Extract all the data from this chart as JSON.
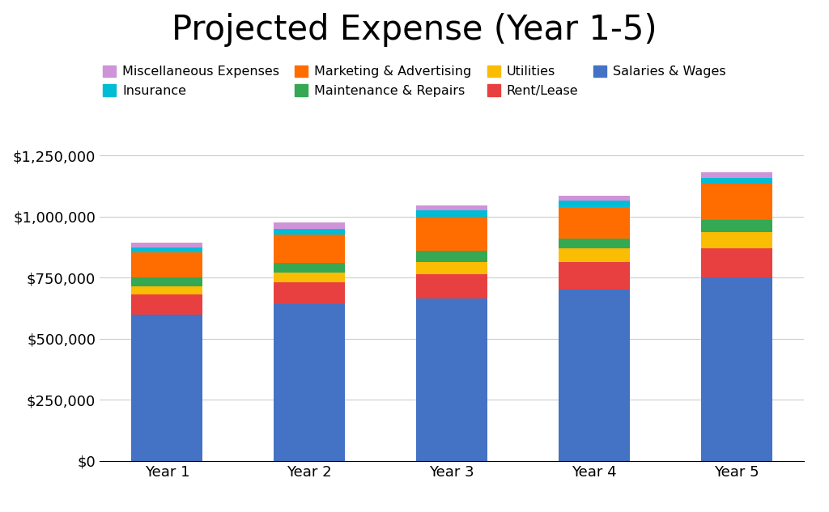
{
  "title": "Projected Expense (Year 1-5)",
  "categories": [
    "Year 1",
    "Year 2",
    "Year 3",
    "Year 4",
    "Year 5"
  ],
  "series": [
    {
      "label": "Salaries & Wages",
      "color": "#4472C4",
      "values": [
        600000,
        640000,
        665000,
        700000,
        750000
      ]
    },
    {
      "label": "Rent/Lease",
      "color": "#E84040",
      "values": [
        80000,
        90000,
        100000,
        115000,
        120000
      ]
    },
    {
      "label": "Utilities",
      "color": "#FBBC04",
      "values": [
        35000,
        40000,
        50000,
        55000,
        65000
      ]
    },
    {
      "label": "Maintenance & Repairs",
      "color": "#34A853",
      "values": [
        35000,
        40000,
        45000,
        40000,
        50000
      ]
    },
    {
      "label": "Marketing & Advertising",
      "color": "#FF6D00",
      "values": [
        105000,
        115000,
        140000,
        130000,
        150000
      ]
    },
    {
      "label": "Insurance",
      "color": "#00BCD4",
      "values": [
        20000,
        25000,
        25000,
        25000,
        25000
      ]
    },
    {
      "label": "Miscellaneous Expenses",
      "color": "#CE93D8",
      "values": [
        20000,
        25000,
        20000,
        20000,
        20000
      ]
    }
  ],
  "ylim": [
    0,
    1300000
  ],
  "yticks": [
    0,
    250000,
    500000,
    750000,
    1000000,
    1250000
  ],
  "ytick_labels": [
    "$0",
    "$250,000",
    "$500,000",
    "$750,000",
    "$1,000,000",
    "$1,250,000"
  ],
  "background_color": "#ffffff",
  "grid_color": "#cccccc",
  "title_fontsize": 30,
  "legend_fontsize": 11.5,
  "tick_fontsize": 13,
  "bar_width": 0.5,
  "legend_order": [
    6,
    5,
    4,
    3,
    2,
    1,
    0
  ]
}
